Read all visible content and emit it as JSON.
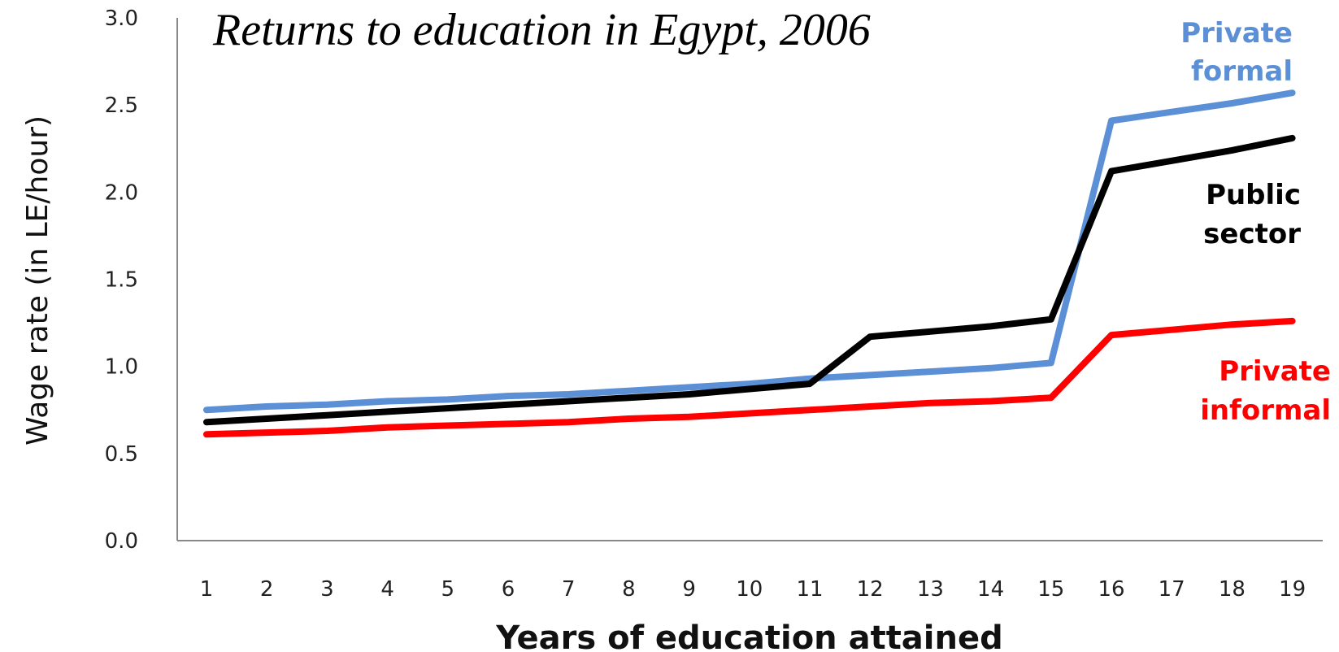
{
  "chart_data": {
    "type": "line",
    "title": "Returns to education in Egypt, 2006",
    "xlabel": "Years of education attained",
    "ylabel": "Wage rate (in LE/hour)",
    "x": [
      1,
      2,
      3,
      4,
      5,
      6,
      7,
      8,
      9,
      10,
      11,
      12,
      13,
      14,
      15,
      16,
      17,
      18,
      19
    ],
    "ylim": [
      0,
      3
    ],
    "yticks": [
      "0.0",
      "0.5",
      "1.0",
      "1.5",
      "2.0",
      "2.5",
      "3.0"
    ],
    "grid": false,
    "legend": "inline labels at right",
    "series": [
      {
        "name": "Private formal",
        "label_lines": [
          "Private",
          "formal"
        ],
        "color": "#5b8fd6",
        "values": [
          0.75,
          0.77,
          0.78,
          0.8,
          0.81,
          0.83,
          0.84,
          0.86,
          0.88,
          0.9,
          0.93,
          0.95,
          0.97,
          0.99,
          1.02,
          2.41,
          2.46,
          2.51,
          2.57
        ]
      },
      {
        "name": "Public sector",
        "label_lines": [
          "Public",
          "sector"
        ],
        "color": "#000000",
        "values": [
          0.68,
          0.7,
          0.72,
          0.74,
          0.76,
          0.78,
          0.8,
          0.82,
          0.84,
          0.87,
          0.9,
          1.17,
          1.2,
          1.23,
          1.27,
          2.12,
          2.18,
          2.24,
          2.31
        ]
      },
      {
        "name": "Private informal",
        "label_lines": [
          "Private",
          "informal"
        ],
        "color": "#ff0000",
        "values": [
          0.61,
          0.62,
          0.63,
          0.65,
          0.66,
          0.67,
          0.68,
          0.7,
          0.71,
          0.73,
          0.75,
          0.77,
          0.79,
          0.8,
          0.82,
          1.18,
          1.21,
          1.24,
          1.26
        ]
      }
    ]
  }
}
